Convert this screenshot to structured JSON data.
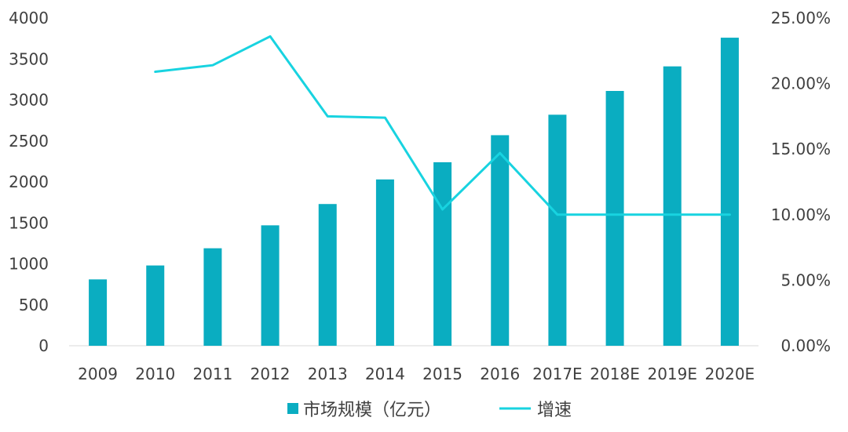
{
  "chart_data": {
    "type": "bar",
    "categories": [
      "2009",
      "2010",
      "2011",
      "2012",
      "2013",
      "2014",
      "2015",
      "2016",
      "2017E",
      "2018E",
      "2019E",
      "2020E"
    ],
    "series": [
      {
        "name": "市场规模（亿元）",
        "type": "bar",
        "axis": "left",
        "color": "#0aadc1",
        "values": [
          810,
          980,
          1190,
          1470,
          1730,
          2030,
          2240,
          2570,
          2820,
          3110,
          3410,
          3760
        ]
      },
      {
        "name": "增速",
        "type": "line",
        "axis": "right",
        "color": "#18d3e0",
        "values": [
          null,
          20.9,
          21.4,
          23.6,
          17.5,
          17.4,
          10.4,
          14.7,
          10.0,
          10.0,
          10.0,
          10.0
        ]
      }
    ],
    "y_left": {
      "min": 0,
      "max": 4000,
      "ticks": [
        "0",
        "500",
        "1000",
        "1500",
        "2000",
        "2500",
        "3000",
        "3500",
        "4000"
      ]
    },
    "y_right": {
      "min": 0,
      "max": 25,
      "ticks": [
        "0.00%",
        "5.00%",
        "10.00%",
        "15.00%",
        "20.00%",
        "25.00%"
      ]
    },
    "grid": false,
    "legend_position": "bottom"
  }
}
